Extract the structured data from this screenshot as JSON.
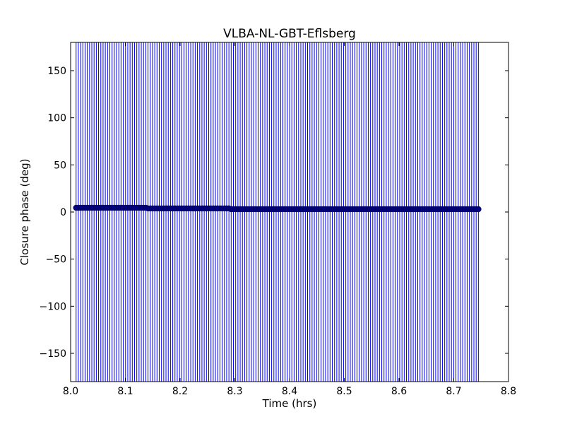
{
  "chart_data": {
    "type": "scatter",
    "title": "VLBA-NL-GBT-Eflsberg",
    "xlabel": "Time (hrs)",
    "ylabel": "Closure phase (deg)",
    "xlim": [
      8.0,
      8.8
    ],
    "ylim": [
      -180,
      180
    ],
    "xticks": [
      8.0,
      8.1,
      8.2,
      8.3,
      8.4,
      8.5,
      8.6,
      8.7,
      8.8
    ],
    "xtick_labels": [
      "8.0",
      "8.1",
      "8.2",
      "8.3",
      "8.4",
      "8.5",
      "8.6",
      "8.7",
      "8.8"
    ],
    "yticks": [
      -150,
      -100,
      -50,
      0,
      50,
      100,
      150
    ],
    "ytick_labels": [
      "−150",
      "−100",
      "−50",
      "0",
      "50",
      "100",
      "150"
    ],
    "grid": false,
    "colors": {
      "errorbar": "#0000ff",
      "marker": "#000080",
      "axes": "#000000"
    },
    "series": [
      {
        "x_start": 8.01,
        "x_end": 8.745,
        "n_points": 180,
        "error_low": -180,
        "error_high": 180,
        "segments": [
          {
            "x_from": 8.01,
            "x_to": 8.14,
            "y": 4.5
          },
          {
            "x_from": 8.14,
            "x_to": 8.29,
            "y": 3.8
          },
          {
            "x_from": 8.29,
            "x_to": 8.745,
            "y": 3.0
          }
        ]
      }
    ]
  }
}
